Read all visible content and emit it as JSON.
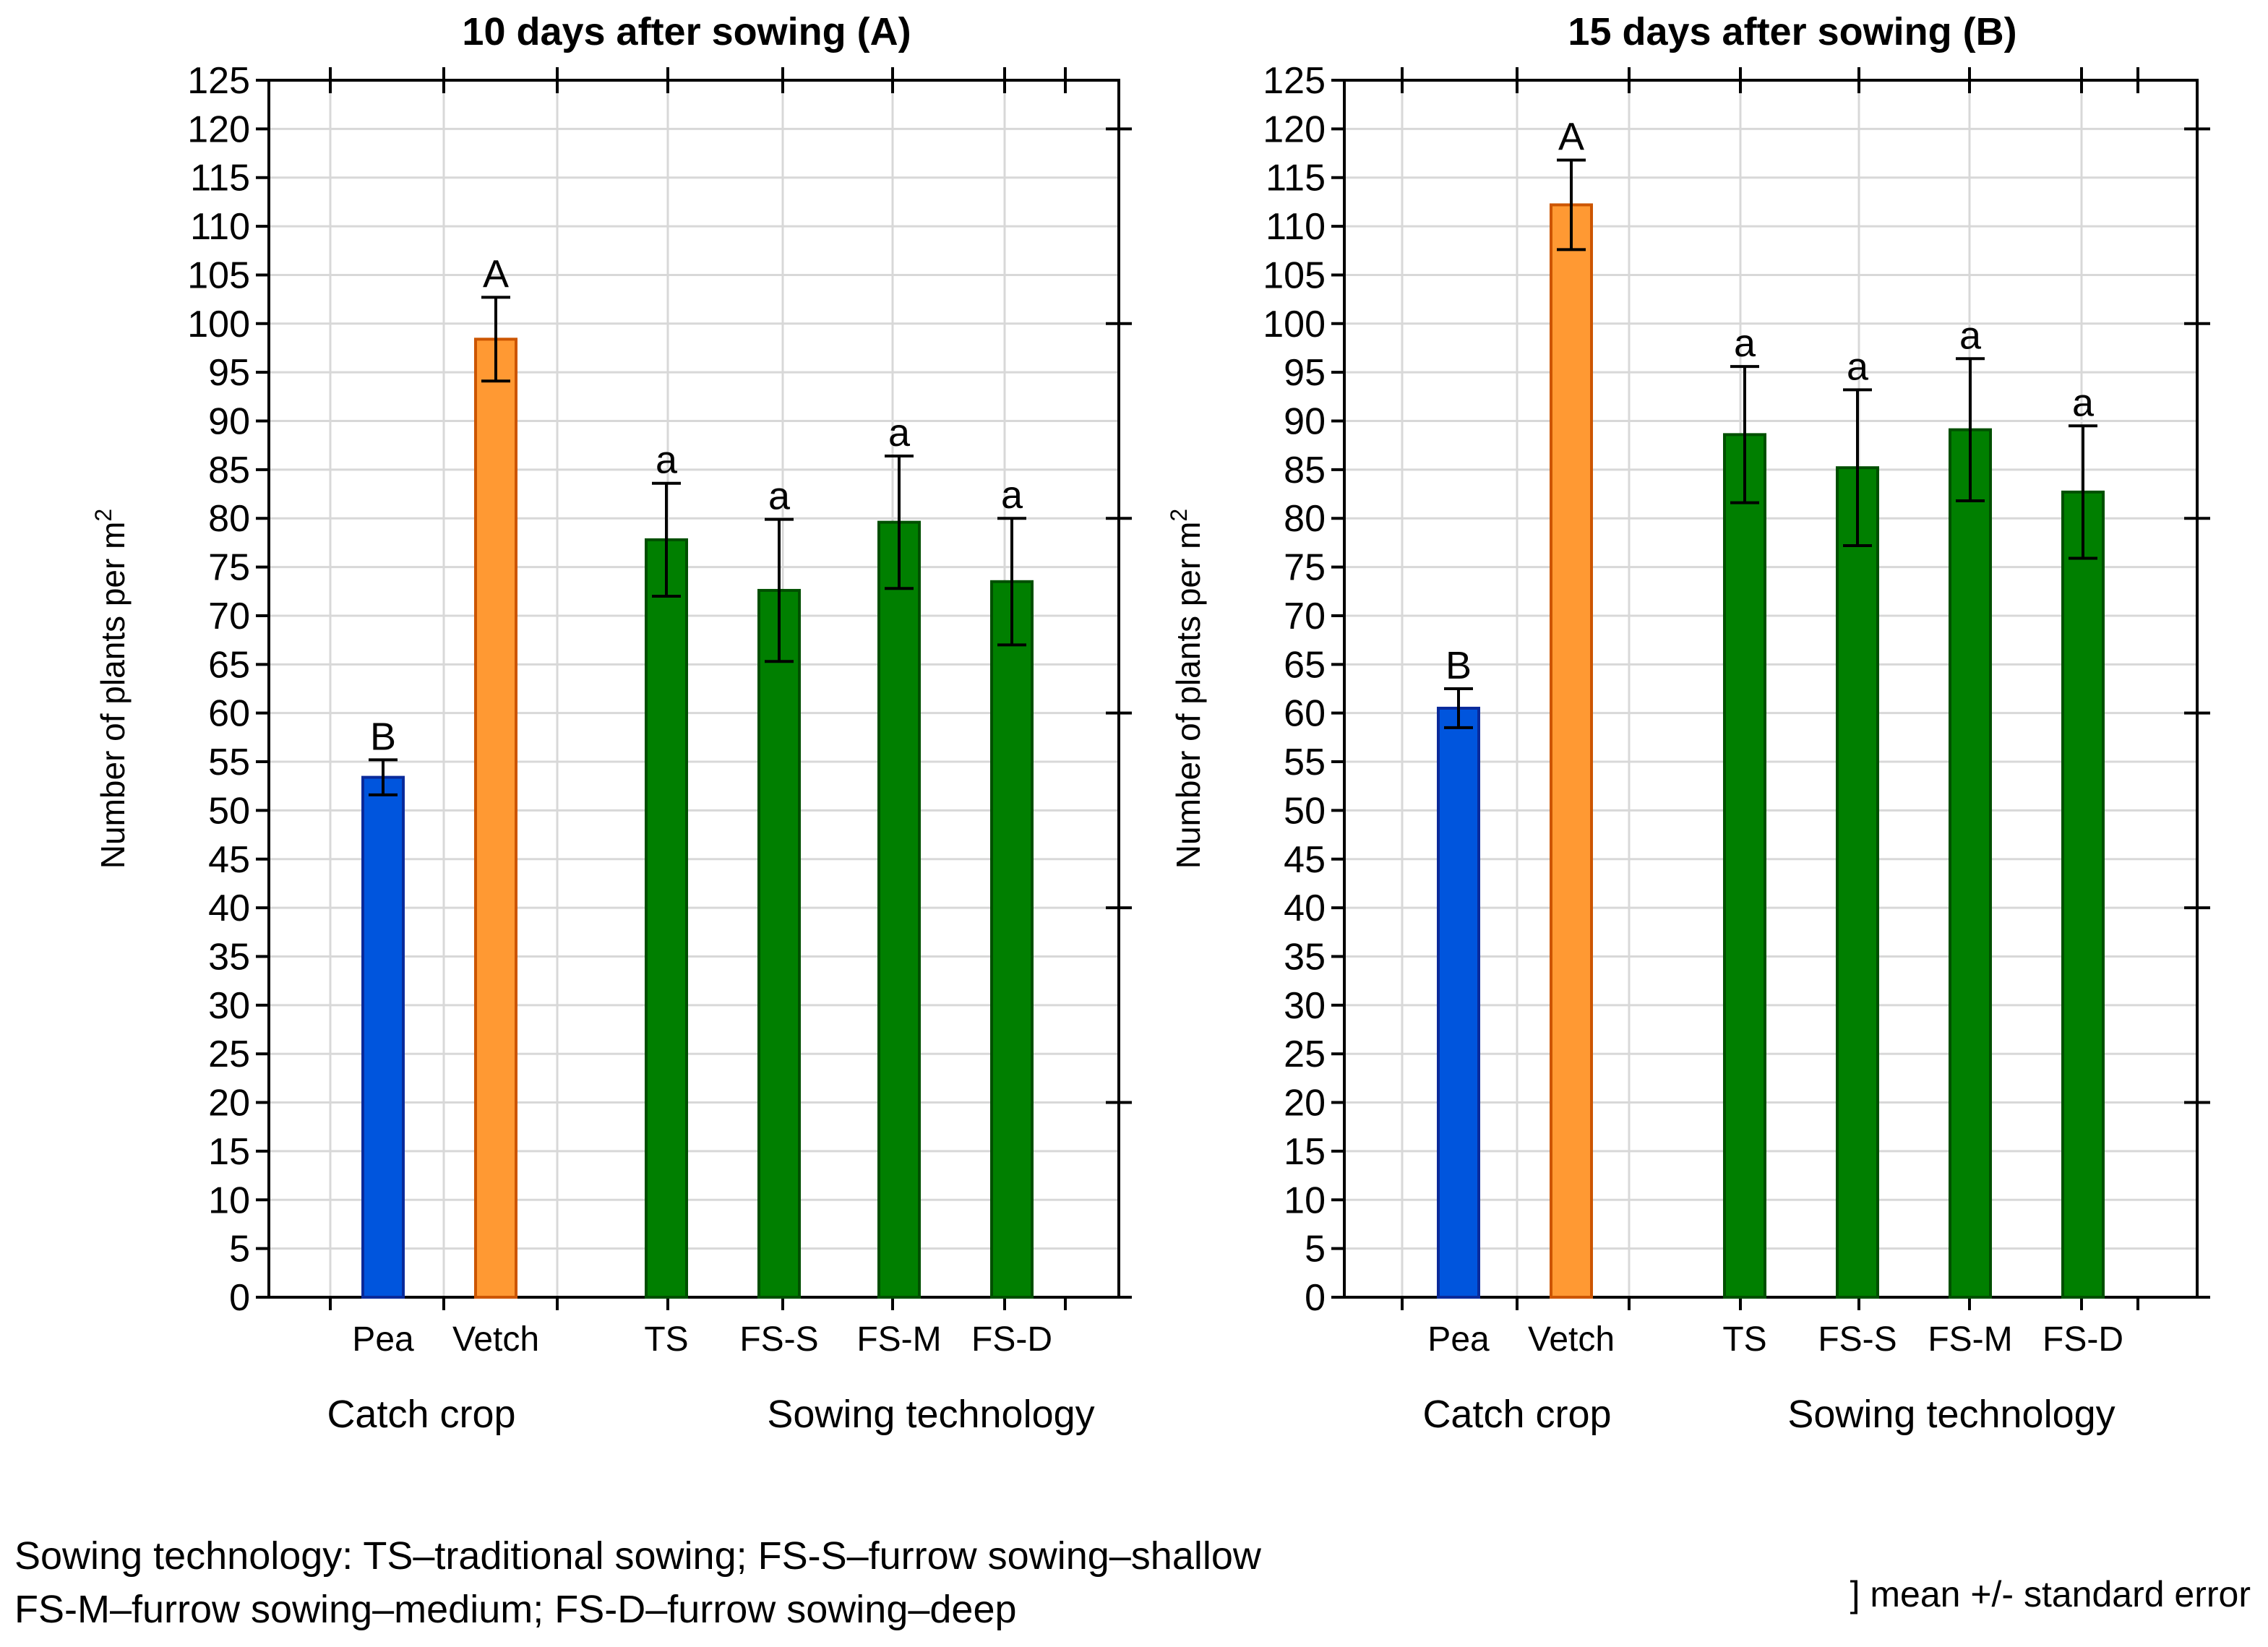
{
  "chart_data": [
    {
      "type": "bar",
      "title": "10 days after sowing (A)",
      "ylabel": "Number of plants per m",
      "ylabel_superscript": "2",
      "ylim": [
        0,
        125
      ],
      "yticks": [
        0,
        5,
        10,
        15,
        20,
        25,
        30,
        35,
        40,
        45,
        50,
        55,
        60,
        65,
        70,
        75,
        80,
        85,
        90,
        95,
        100,
        105,
        110,
        115,
        120,
        125
      ],
      "groups": [
        {
          "label": "Catch crop",
          "categories": [
            "Pea",
            "Vetch"
          ]
        },
        {
          "label": "Sowing technology",
          "categories": [
            "TS",
            "FS-S",
            "FS-M",
            "FS-D"
          ]
        }
      ],
      "categories": [
        "Pea",
        "Vetch",
        "TS",
        "FS-S",
        "FS-M",
        "FS-D"
      ],
      "values": [
        53.4,
        98.4,
        77.8,
        72.6,
        79.6,
        73.5
      ],
      "errors": [
        1.8,
        4.3,
        5.8,
        7.3,
        6.8,
        6.5
      ],
      "letters": [
        "B",
        "A",
        "a",
        "a",
        "a",
        "a"
      ],
      "colors": [
        "#0055dd",
        "#ff9933",
        "#007f00",
        "#007f00",
        "#007f00",
        "#007f00"
      ],
      "edge_colors": [
        "#0a2a9a",
        "#cc5500",
        "#004f00",
        "#004f00",
        "#004f00",
        "#004f00"
      ]
    },
    {
      "type": "bar",
      "title": "15 days after sowing (B)",
      "ylabel": "Number of plants per m",
      "ylabel_superscript": "2",
      "ylim": [
        0,
        125
      ],
      "yticks": [
        0,
        5,
        10,
        15,
        20,
        25,
        30,
        35,
        40,
        45,
        50,
        55,
        60,
        65,
        70,
        75,
        80,
        85,
        90,
        95,
        100,
        105,
        110,
        115,
        120,
        125
      ],
      "groups": [
        {
          "label": "Catch crop",
          "categories": [
            "Pea",
            "Vetch"
          ]
        },
        {
          "label": "Sowing technology",
          "categories": [
            "TS",
            "FS-S",
            "FS-M",
            "FS-D"
          ]
        }
      ],
      "categories": [
        "Pea",
        "Vetch",
        "TS",
        "FS-S",
        "FS-M",
        "FS-D"
      ],
      "values": [
        60.5,
        112.2,
        88.6,
        85.2,
        89.1,
        82.7
      ],
      "errors": [
        2.0,
        4.6,
        7.0,
        8.0,
        7.3,
        6.8
      ],
      "letters": [
        "B",
        "A",
        "a",
        "a",
        "a",
        "a"
      ],
      "colors": [
        "#0055dd",
        "#ff9933",
        "#007f00",
        "#007f00",
        "#007f00",
        "#007f00"
      ],
      "edge_colors": [
        "#0a2a9a",
        "#cc5500",
        "#004f00",
        "#004f00",
        "#004f00",
        "#004f00"
      ]
    }
  ],
  "footnotes": {
    "line1": "Sowing technology: TS–traditional sowing; FS-S–furrow sowing–shallow",
    "line2": "FS-M–furrow sowing–medium; FS-D–furrow sowing–deep",
    "legend": "] mean +/- standard error"
  }
}
